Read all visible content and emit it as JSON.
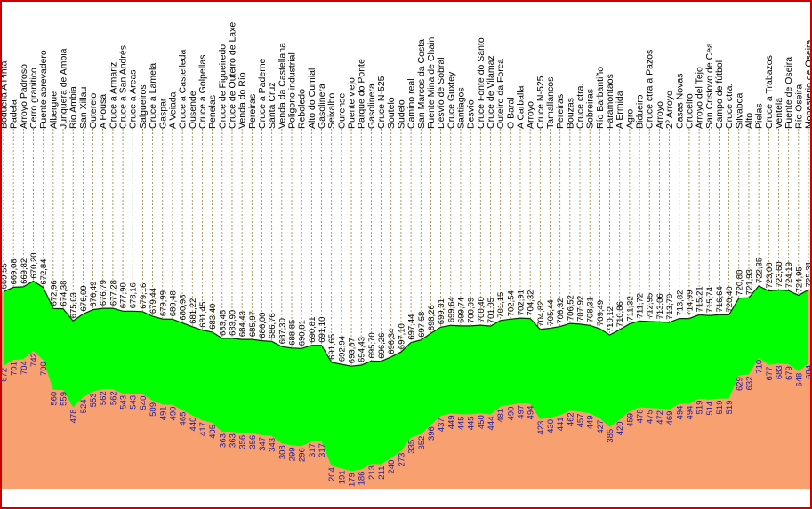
{
  "chart_data": {
    "type": "area",
    "colors": {
      "elevation_fill": "#00ff00",
      "elevation_stroke": "#003300",
      "below_fill": "#f8a070",
      "grid": "#a08040",
      "border": "#cc0000",
      "altitude_labels": "#2020a0"
    },
    "places": [
      "Bodueila A Pinta",
      "Padela",
      "Arroyo Padroso",
      "Cerro granitico",
      "Fuente abrevadero",
      "Albergue",
      "Junquera de Ambia",
      "Rio Ambia",
      "San Xillau",
      "Outerelo",
      "A Pousa",
      "Cruce a Armariz",
      "Cruce a San Andrés",
      "Cruce a Areas",
      "Salgueiros",
      "Cruce a Lamela",
      "Gaspar",
      "A Veiada",
      "Cruce a Castelleda",
      "Ousende",
      "Cruce a Golpellas",
      "Penelas",
      "Cruce de Figueiredo",
      "Cruce de Outeiro de Laxe",
      "Venda do Río",
      "Pereiras",
      "Cruce a Paderne",
      "Santa Cruz",
      "Venda da Castellana",
      "Poligono industrial",
      "Reboledo",
      "Alto do Cumial",
      "Gasolinera",
      "Seixalbo",
      "Ourense",
      "Puente viejo",
      "Parque do Ponte",
      "Gasolinera",
      "Cruce N-525",
      "Soutelo",
      "Sudelo",
      "Camino real",
      "San Marcos da Costa",
      "Fuente Mina de Chain",
      "Desvío de Sobral",
      "Cruce Guxtey",
      "Santiagos",
      "Desvío",
      "Cruce Fonte do Santo",
      "Cruce de Vilamaz",
      "Outeiro da Forca",
      "O Baral",
      "A Carballa",
      "Arroyo",
      "Cruce N-525",
      "Tamallancos",
      "Pereiras",
      "Bouzas",
      "Cruce ctra.",
      "Sobreiras",
      "Río Barbantiño",
      "Faramontaos",
      "A Ermida",
      "Agro",
      "Bidueiro",
      "Cruce ctra a Pazos",
      "Arroyo",
      "2º Arroyo",
      "Casas Novas",
      "Cruceiro",
      "Arroyo del Tejo",
      "San Cristovo de Cea",
      "Campo de fútbol",
      "Cruce ctra.",
      "Silvaboa",
      "Alto",
      "Pielas",
      "Cruce a Trabazos",
      "Ventela",
      "Fuente de Oseira",
      "Río Oseira",
      "Monasterio de Oseira"
    ],
    "km": [
      "669,55",
      "669,08",
      "669,82",
      "670,20",
      "672,84",
      "672,96",
      "674,38",
      "675,03",
      "676,09",
      "676,49",
      "676,79",
      "677,28",
      "677,90",
      "678,16",
      "679,16",
      "679,44",
      "679,99",
      "680,48",
      "680,98",
      "681,22",
      "681,45",
      "683,40",
      "683,45",
      "683,90",
      "684,43",
      "685,97",
      "686,00",
      "686,76",
      "687,30",
      "688,85",
      "690,81",
      "690,81",
      "691,10",
      "691,65",
      "692,94",
      "693,87",
      "694,43",
      "695,70",
      "696,26",
      "696,34",
      "697,10",
      "697,44",
      "697,58",
      "698,26",
      "699,31",
      "699,64",
      "699,74",
      "700,09",
      "700,40",
      "701,05",
      "701,15",
      "702,54",
      "702,91",
      "704,32",
      "704,82",
      "705,44",
      "706,32",
      "706,52",
      "707,92",
      "708,31",
      "709,49",
      "710,12",
      "710,86",
      "711,32",
      "711,72",
      "712,95",
      "713,06",
      "713,70",
      "713,82",
      "714,99",
      "715,21",
      "715,74",
      "716,64",
      "720,40",
      "720,80",
      "721,93",
      "722,35",
      "723,00",
      "723,60",
      "724,19",
      "724,95",
      "725,31"
    ],
    "altitude": [
      "672",
      "701",
      "704",
      "742",
      "700",
      "560",
      "559",
      "478",
      "524",
      "553",
      "562",
      "562",
      "543",
      "543",
      "540",
      "509",
      "491",
      "490",
      "465",
      "440",
      "417",
      "405",
      "363",
      "363",
      "356",
      "356",
      "347",
      "343",
      "308",
      "299",
      "296",
      "317",
      "317",
      "204",
      "191",
      "179",
      "186",
      "213",
      "211",
      "240",
      "273",
      "335",
      "352",
      "396",
      "437",
      "449",
      "445",
      "445",
      "450",
      "444",
      "481",
      "490",
      "497",
      "494",
      "423",
      "430",
      "441",
      "462",
      "457",
      "449",
      "427",
      "385",
      "420",
      "459",
      "478",
      "475",
      "472",
      "469",
      "494",
      "494",
      "519",
      "514",
      "519",
      "519",
      "629",
      "632",
      "710",
      "677",
      "683",
      "679",
      "648",
      "684"
    ],
    "ylim": [
      0,
      800
    ]
  }
}
